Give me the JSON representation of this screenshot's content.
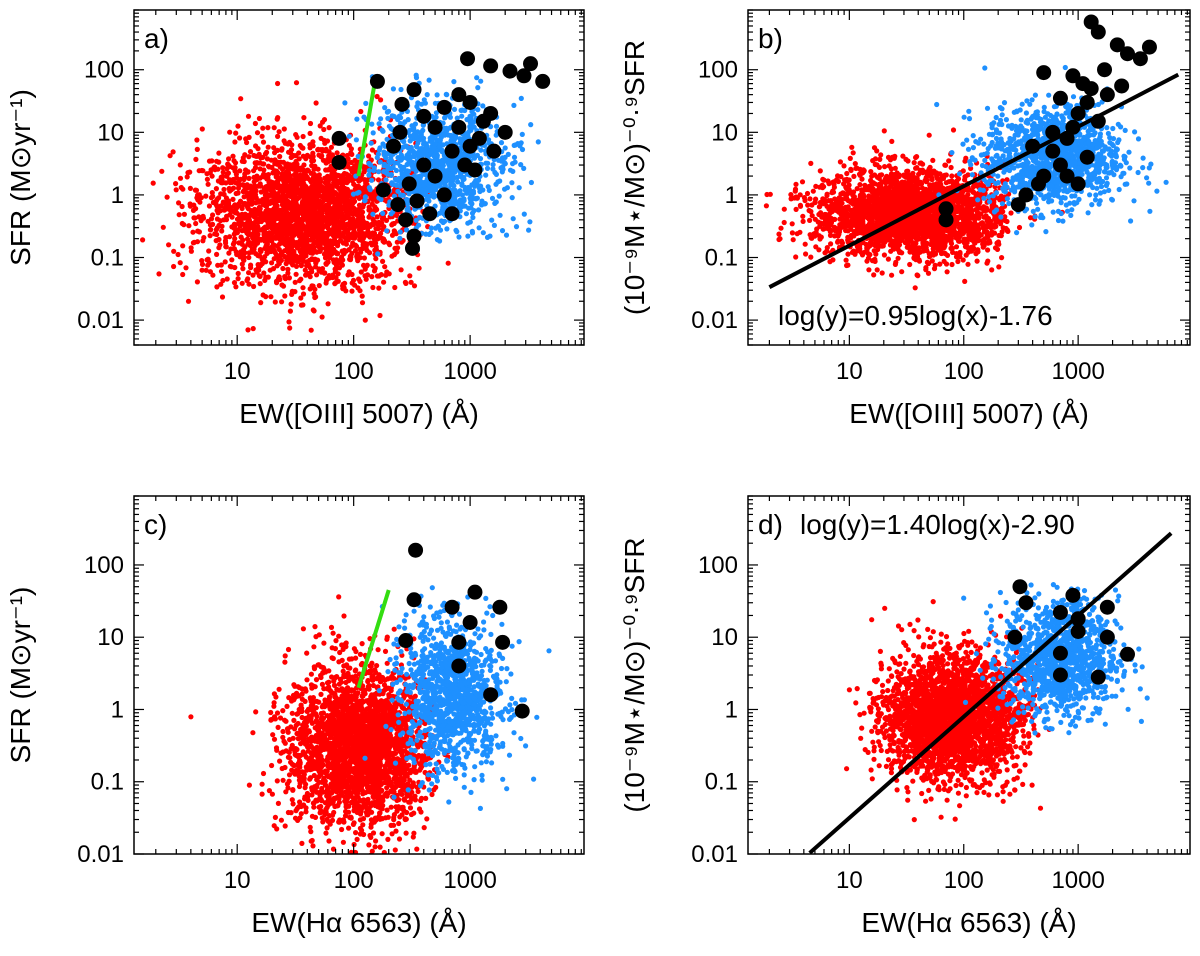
{
  "colors": {
    "red": "#ff0000",
    "blue": "#1e90ff",
    "black": "#000000",
    "green": "#33dd11"
  },
  "chart_data": [
    {
      "panel": "a",
      "type": "scatter",
      "tag": "a)",
      "xlabel": "EW([OIII] 5007) (Å)",
      "ylabel": "SFR (M⊙yr⁻¹)",
      "xscale": "log",
      "yscale": "log",
      "xlim": [
        1.3,
        9500
      ],
      "ylim": [
        0.004,
        900
      ],
      "xticks": [
        10,
        100,
        1000
      ],
      "yticks": [
        0.01,
        0.1,
        1,
        10,
        100
      ],
      "xtick_labels": [
        "10",
        "100",
        "1000"
      ],
      "ytick_labels": [
        "0.01",
        "0.1",
        "1",
        "10",
        "100"
      ],
      "red_cloud": {
        "center": [
          40,
          0.5
        ],
        "spread": [
          0.45,
          0.55
        ],
        "count": 2600,
        "xmax": 400
      },
      "blue_cloud": {
        "center": [
          550,
          3
        ],
        "spread": [
          0.28,
          0.5
        ],
        "count": 1100
      },
      "green_line": [
        [
          110,
          2
        ],
        [
          150,
          55
        ]
      ],
      "black_points": [
        [
          160,
          65
        ],
        [
          330,
          48
        ],
        [
          950,
          150
        ],
        [
          1500,
          115
        ],
        [
          2200,
          95
        ],
        [
          3300,
          125
        ],
        [
          2900,
          80
        ],
        [
          4200,
          65
        ],
        [
          75,
          8
        ],
        [
          75,
          3.3
        ],
        [
          220,
          6
        ],
        [
          260,
          28
        ],
        [
          400,
          18
        ],
        [
          600,
          25
        ],
        [
          800,
          12
        ],
        [
          1000,
          30
        ],
        [
          1200,
          8
        ],
        [
          1500,
          20
        ],
        [
          300,
          1.5
        ],
        [
          350,
          0.8
        ],
        [
          280,
          0.4
        ],
        [
          330,
          0.22
        ],
        [
          320,
          0.14
        ],
        [
          450,
          0.5
        ],
        [
          500,
          2
        ],
        [
          700,
          5
        ],
        [
          900,
          3
        ],
        [
          1100,
          2.5
        ],
        [
          1300,
          15
        ],
        [
          2000,
          10
        ],
        [
          600,
          1
        ],
        [
          400,
          3
        ],
        [
          180,
          1.2
        ],
        [
          240,
          0.7
        ],
        [
          700,
          0.5
        ],
        [
          1000,
          6
        ],
        [
          1600,
          5
        ],
        [
          800,
          40
        ],
        [
          500,
          12
        ],
        [
          250,
          10
        ]
      ]
    },
    {
      "panel": "b",
      "type": "scatter",
      "tag": "b)",
      "xlabel": "EW([OIII] 5007) (Å)",
      "ylabel": "(10⁻⁹M⋆/M⊙)⁻⁰·⁹SFR",
      "xscale": "log",
      "yscale": "log",
      "xlim": [
        1.3,
        9500
      ],
      "ylim": [
        0.004,
        900
      ],
      "xticks": [
        10,
        100,
        1000
      ],
      "yticks": [
        0.01,
        0.1,
        1,
        10,
        100
      ],
      "xtick_labels": [
        "10",
        "100",
        "1000"
      ],
      "ytick_labels": [
        "0.01",
        "0.1",
        "1",
        "10",
        "100"
      ],
      "fit_label": "log(y)=0.95log(x)-1.76",
      "fit": {
        "slope": 0.95,
        "intercept": -1.76,
        "xrange": [
          2,
          7500
        ]
      },
      "red_cloud": {
        "center": [
          35,
          0.5
        ],
        "spread": [
          0.42,
          0.35
        ],
        "count": 2600,
        "xmax": 250
      },
      "blue_cloud": {
        "center": [
          600,
          4
        ],
        "spread": [
          0.3,
          0.4
        ],
        "count": 1200
      },
      "black_points": [
        [
          1300,
          580
        ],
        [
          1500,
          400
        ],
        [
          2200,
          250
        ],
        [
          2700,
          180
        ],
        [
          3500,
          150
        ],
        [
          4200,
          230
        ],
        [
          500,
          90
        ],
        [
          900,
          80
        ],
        [
          1100,
          60
        ],
        [
          1300,
          50
        ],
        [
          700,
          35
        ],
        [
          1000,
          20
        ],
        [
          1200,
          30
        ],
        [
          900,
          12
        ],
        [
          800,
          8
        ],
        [
          600,
          5
        ],
        [
          700,
          3
        ],
        [
          500,
          2
        ],
        [
          450,
          1.5
        ],
        [
          350,
          1
        ],
        [
          300,
          0.7
        ],
        [
          800,
          2
        ],
        [
          1000,
          1.5
        ],
        [
          1200,
          4
        ],
        [
          600,
          10
        ],
        [
          400,
          6
        ],
        [
          70,
          0.6
        ],
        [
          70,
          0.4
        ],
        [
          1500,
          15
        ],
        [
          1800,
          40
        ],
        [
          1700,
          100
        ],
        [
          2400,
          55
        ]
      ]
    },
    {
      "panel": "c",
      "type": "scatter",
      "tag": "c)",
      "xlabel": "EW(Hα 6563) (Å)",
      "ylabel": "SFR (M⊙yr⁻¹)",
      "xscale": "log",
      "yscale": "log",
      "xlim": [
        1.3,
        9500
      ],
      "ylim": [
        0.01,
        900
      ],
      "xticks": [
        10,
        100,
        1000
      ],
      "yticks": [
        0.01,
        0.1,
        1,
        10,
        100
      ],
      "xtick_labels": [
        "10",
        "100",
        "1000"
      ],
      "ytick_labels": [
        "0.01",
        "0.1",
        "1",
        "10",
        "100"
      ],
      "red_cloud": {
        "center": [
          110,
          0.3
        ],
        "spread": [
          0.3,
          0.55
        ],
        "count": 2600,
        "xmax": 500
      },
      "blue_cloud": {
        "center": [
          700,
          1.5
        ],
        "spread": [
          0.22,
          0.5
        ],
        "count": 1100
      },
      "green_line": [
        [
          110,
          2
        ],
        [
          200,
          45
        ]
      ],
      "black_points": [
        [
          340,
          160
        ],
        [
          330,
          33
        ],
        [
          280,
          9
        ],
        [
          1100,
          42
        ],
        [
          1800,
          26
        ],
        [
          700,
          26
        ],
        [
          1000,
          16
        ],
        [
          800,
          8.5
        ],
        [
          1900,
          8.5
        ],
        [
          800,
          4
        ],
        [
          1500,
          1.6
        ],
        [
          2800,
          0.95
        ]
      ]
    },
    {
      "panel": "d",
      "type": "scatter",
      "tag": "d)",
      "xlabel": "EW(Hα 6563) (Å)",
      "ylabel": "(10⁻⁹M⋆/M⊙)⁻⁰·⁹SFR",
      "xscale": "log",
      "yscale": "log",
      "xlim": [
        1.3,
        9500
      ],
      "ylim": [
        0.01,
        900
      ],
      "xticks": [
        10,
        100,
        1000
      ],
      "yticks": [
        0.01,
        0.1,
        1,
        10,
        100
      ],
      "xtick_labels": [
        "10",
        "100",
        "1000"
      ],
      "ytick_labels": [
        "0.01",
        "0.1",
        "1",
        "10",
        "100"
      ],
      "fit_label": "log(y)=1.40log(x)-2.90",
      "fit": {
        "slope": 1.4,
        "intercept": -2.9,
        "xrange": [
          4.5,
          6500
        ]
      },
      "red_cloud": {
        "center": [
          80,
          0.8
        ],
        "spread": [
          0.3,
          0.42
        ],
        "count": 2600,
        "xmax": 500
      },
      "blue_cloud": {
        "center": [
          700,
          5
        ],
        "spread": [
          0.25,
          0.4
        ],
        "count": 1100
      },
      "black_points": [
        [
          310,
          50
        ],
        [
          350,
          30
        ],
        [
          280,
          10
        ],
        [
          700,
          22
        ],
        [
          1000,
          18
        ],
        [
          900,
          38
        ],
        [
          1800,
          26
        ],
        [
          700,
          6
        ],
        [
          1000,
          12
        ],
        [
          1800,
          10
        ],
        [
          700,
          3
        ],
        [
          1500,
          2.8
        ],
        [
          2700,
          5.8
        ]
      ]
    }
  ]
}
